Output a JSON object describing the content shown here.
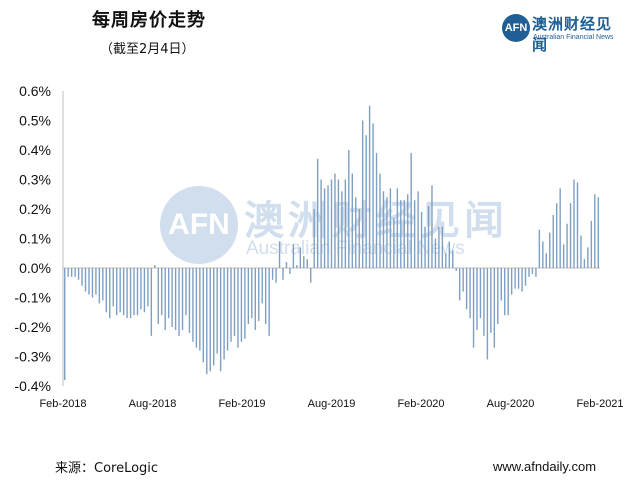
{
  "header": {
    "title": "每周房价走势",
    "subtitle": "（截至2月4日）"
  },
  "logo": {
    "mark_text": "AFN",
    "name_cn": "澳洲财经见闻",
    "name_en": "Australian Financial News"
  },
  "watermark": {
    "mark_text": "AFN",
    "text_cn": "澳洲财经见闻",
    "text_en": "Australian Financial News"
  },
  "footer": {
    "source": "来源：CoreLogic",
    "website": "www.afndaily.com"
  },
  "colors": {
    "bar": "#7f9fc2",
    "axis": "#bfbfbf",
    "brand": "#1f5f95"
  },
  "chart_data": {
    "type": "bar",
    "title": "每周房价走势",
    "ylabel": "",
    "xlabel": "",
    "ylim": [
      -0.4,
      0.6
    ],
    "y_ticks": [
      "0.6%",
      "0.5%",
      "0.4%",
      "0.3%",
      "0.2%",
      "0.1%",
      "0.0%",
      "-0.1%",
      "-0.2%",
      "-0.3%",
      "-0.4%"
    ],
    "x_ticks": [
      "Feb-2018",
      "Aug-2018",
      "Feb-2019",
      "Aug-2019",
      "Feb-2020",
      "Aug-2020",
      "Feb-2021"
    ],
    "grid": false,
    "legend": "none",
    "start": "Feb-2018",
    "end": "Feb-2021",
    "values": [
      -0.38,
      -0.03,
      -0.03,
      -0.03,
      -0.04,
      -0.06,
      -0.08,
      -0.09,
      -0.1,
      -0.09,
      -0.12,
      -0.11,
      -0.15,
      -0.17,
      -0.13,
      -0.16,
      -0.15,
      -0.16,
      -0.17,
      -0.17,
      -0.16,
      -0.16,
      -0.14,
      -0.15,
      -0.13,
      -0.23,
      0.01,
      -0.19,
      -0.16,
      -0.21,
      -0.17,
      -0.2,
      -0.21,
      -0.23,
      -0.21,
      -0.16,
      -0.22,
      -0.25,
      -0.27,
      -0.28,
      -0.32,
      -0.36,
      -0.35,
      -0.33,
      -0.29,
      -0.35,
      -0.31,
      -0.28,
      -0.25,
      -0.23,
      -0.27,
      -0.25,
      -0.24,
      -0.19,
      -0.17,
      -0.21,
      -0.18,
      -0.12,
      -0.19,
      -0.23,
      -0.04,
      -0.05,
      0.09,
      -0.04,
      0.02,
      -0.02,
      0.08,
      0.01,
      0.07,
      0.04,
      0.03,
      -0.05,
      0.2,
      0.37,
      0.3,
      0.27,
      0.28,
      0.3,
      0.32,
      0.3,
      0.26,
      0.3,
      0.4,
      0.32,
      0.24,
      0.2,
      0.5,
      0.45,
      0.55,
      0.49,
      0.39,
      0.32,
      0.26,
      0.24,
      0.27,
      0.17,
      0.27,
      0.23,
      0.23,
      0.25,
      0.39,
      0.23,
      0.26,
      0.19,
      0.14,
      0.21,
      0.28,
      0.1,
      0.14,
      0.14,
      0.05,
      0.09,
      0.06,
      -0.01,
      -0.11,
      -0.08,
      -0.14,
      -0.17,
      -0.27,
      -0.21,
      -0.17,
      -0.23,
      -0.31,
      -0.22,
      -0.27,
      -0.19,
      -0.11,
      -0.16,
      -0.16,
      -0.09,
      -0.07,
      -0.07,
      -0.08,
      -0.06,
      -0.03,
      -0.02,
      -0.03,
      0.13,
      0.09,
      0.05,
      0.12,
      0.18,
      0.22,
      0.27,
      0.08,
      0.15,
      0.22,
      0.3,
      0.29,
      0.11,
      0.03,
      0.07,
      0.16,
      0.25,
      0.24
    ]
  }
}
